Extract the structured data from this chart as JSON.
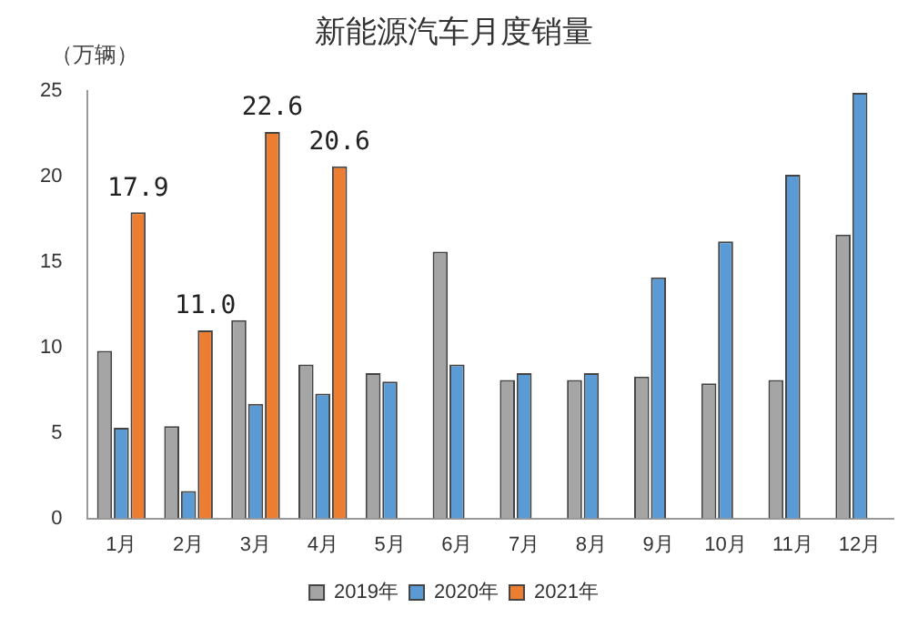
{
  "chart_data": {
    "type": "bar",
    "title": "新能源汽车月度销量",
    "ylabel": "（万辆）",
    "categories": [
      "1月",
      "2月",
      "3月",
      "4月",
      "5月",
      "6月",
      "7月",
      "8月",
      "9月",
      "10月",
      "11月",
      "12月"
    ],
    "series": [
      {
        "name": "2019年",
        "color": "#a5a5a5",
        "values": [
          9.8,
          5.4,
          11.6,
          9.0,
          8.5,
          15.6,
          8.1,
          8.1,
          8.3,
          7.9,
          8.1,
          16.6
        ]
      },
      {
        "name": "2020年",
        "color": "#5b9bd5",
        "values": [
          5.3,
          1.6,
          6.7,
          7.3,
          8.0,
          9.0,
          8.5,
          8.5,
          14.1,
          16.2,
          20.1,
          24.9
        ]
      },
      {
        "name": "2021年",
        "color": "#ed7d31",
        "values": [
          17.9,
          11.0,
          22.6,
          20.6,
          null,
          null,
          null,
          null,
          null,
          null,
          null,
          null
        ],
        "value_labels": [
          "17.9",
          "11.0",
          "22.6",
          "20.6",
          null,
          null,
          null,
          null,
          null,
          null,
          null,
          null
        ]
      }
    ],
    "ylim": [
      0,
      25
    ],
    "yticks": [
      0,
      5,
      10,
      15,
      20,
      25
    ],
    "grid": false,
    "legend": "bottom"
  }
}
